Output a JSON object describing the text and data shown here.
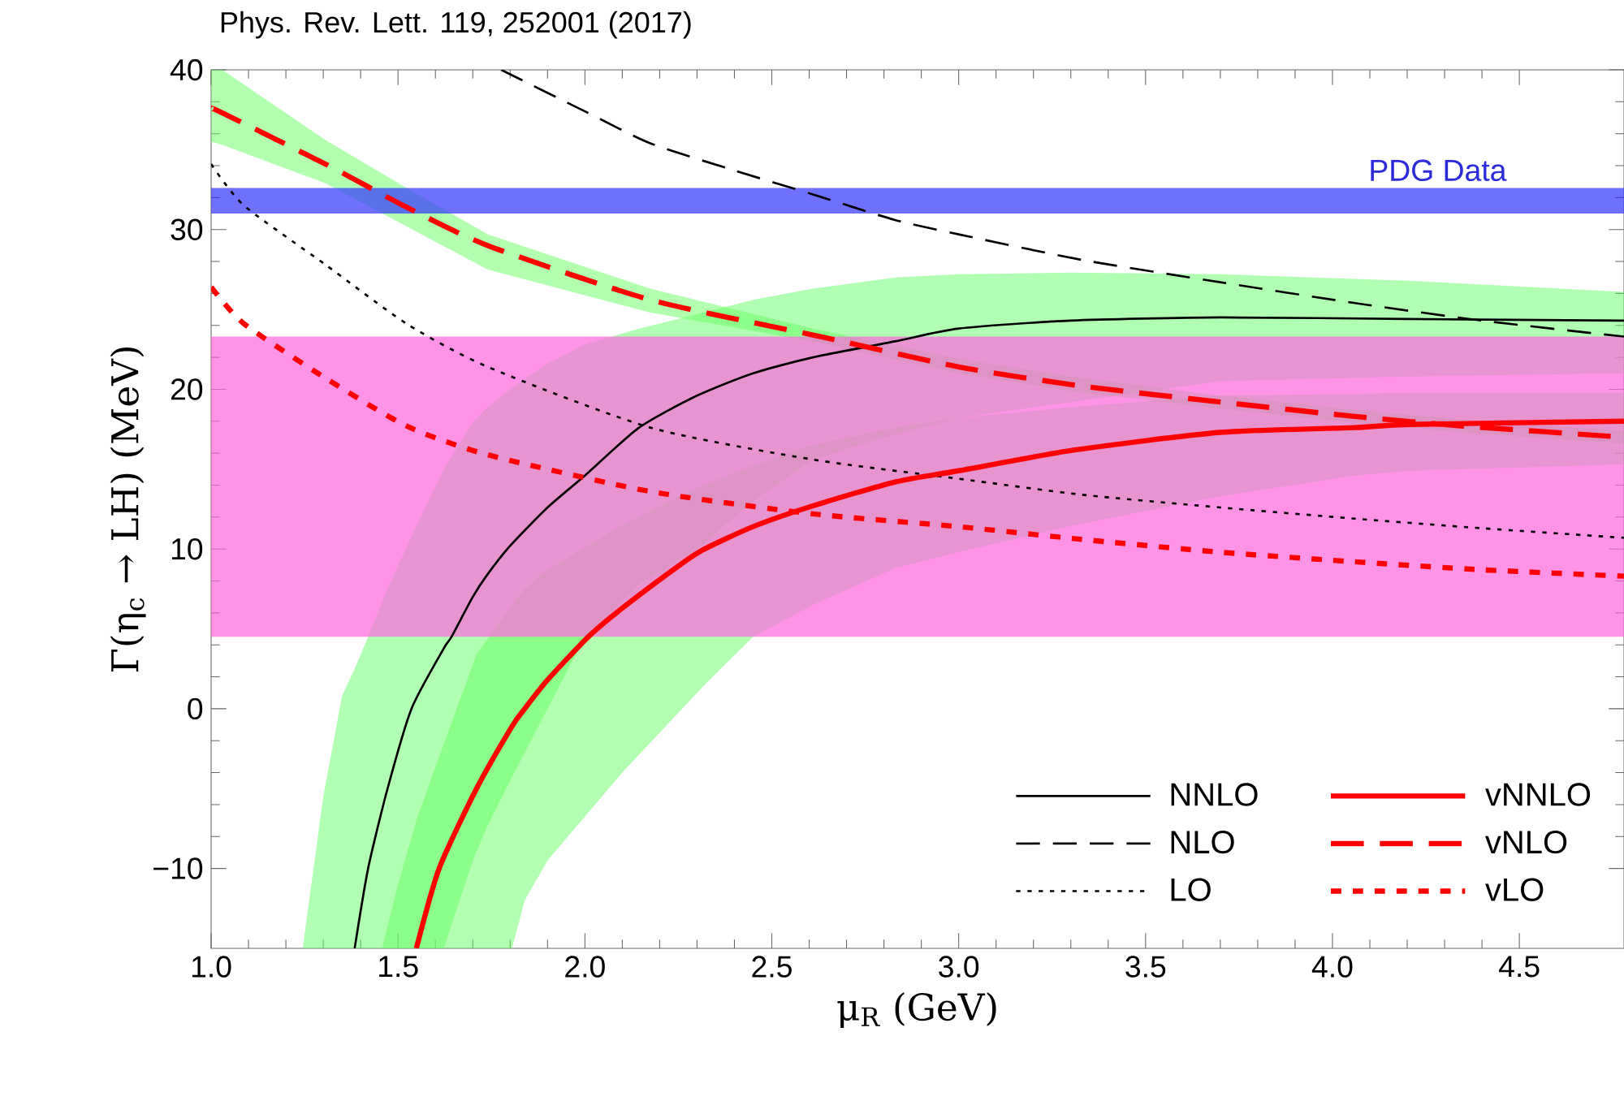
{
  "chart_data": {
    "type": "line",
    "title": "Phys. Rev. Lett. 119, 252001 (2017)",
    "xlabel": "μ$_{R}$ (GeV)",
    "ylabel": "Γ(η$_{c}$ → LH) (MeV)",
    "xlim": [
      1.0,
      4.78
    ],
    "ylim": [
      -15,
      40
    ],
    "xticks": [
      {
        "value": 1.0,
        "label": "1.0"
      },
      {
        "value": 1.5,
        "label": "1.5"
      },
      {
        "value": 2.0,
        "label": "2.0"
      },
      {
        "value": 2.5,
        "label": "2.5"
      },
      {
        "value": 3.0,
        "label": "3.0"
      },
      {
        "value": 3.5,
        "label": "3.5"
      },
      {
        "value": 4.0,
        "label": "4.0"
      },
      {
        "value": 4.5,
        "label": "4.5"
      }
    ],
    "yticks": [
      {
        "value": -10,
        "label": "−10"
      },
      0,
      10,
      20,
      30,
      40
    ],
    "legend": "bottom right",
    "bands": [
      {
        "axis": "y",
        "from": 4.5,
        "to": 23.3,
        "color": "#ff66dd"
      },
      {
        "axis": "y",
        "from": 31.0,
        "to": 32.6,
        "label": "PDG Data",
        "color": "#3333ff"
      }
    ],
    "series": [
      {
        "name": "NNLO",
        "color": "#000000",
        "line_style": "solid",
        "x": [
          1.245,
          1.3,
          1.35,
          1.384,
          1.42,
          1.472,
          1.536,
          1.623,
          1.643,
          1.7,
          1.736,
          1.8,
          1.9,
          2.0,
          2.145,
          2.3,
          2.45,
          2.61,
          2.83,
          3.0,
          3.3,
          3.7,
          4.2,
          4.78
        ],
        "values": [
          null,
          null,
          null,
          -15,
          -10,
          -5,
          0,
          3.8,
          4.5,
          7.0,
          8.3,
          10.2,
          12.6,
          14.6,
          17.6,
          19.6,
          21.0,
          22.0,
          23.0,
          23.8,
          24.3,
          24.5,
          24.4,
          24.3
        ],
        "upper": [
          -15,
          -5.5,
          0.8,
          2.5,
          4.5,
          7.5,
          10.8,
          15.0,
          15.8,
          17.9,
          18.8,
          20.0,
          21.6,
          22.8,
          23.8,
          24.7,
          25.6,
          26.3,
          27.0,
          27.2,
          27.3,
          27.2,
          26.8,
          26.1
        ],
        "lower": [
          -15,
          -15,
          -15,
          -15,
          -15,
          -15,
          -15,
          -15,
          -13.5,
          -9.5,
          -7.5,
          -4.5,
          0,
          4.5,
          7.8,
          10,
          13,
          15.6,
          17.2,
          18.2,
          19.2,
          20.5,
          20.8,
          21.0
        ]
      },
      {
        "name": "NLO",
        "color": "#000000",
        "line_style": "dashed",
        "x": [
          1.776,
          2.0,
          2.175,
          2.4,
          2.61,
          2.83,
          3.0,
          3.33,
          3.7,
          4.06,
          4.4,
          4.78
        ],
        "values": [
          40,
          37.4,
          35.4,
          33.7,
          32.2,
          30.6,
          29.7,
          28.1,
          26.7,
          25.4,
          24.3,
          23.3
        ]
      },
      {
        "name": "LO",
        "color": "#000000",
        "line_style": "dotted",
        "x": [
          1.0,
          1.088,
          1.306,
          1.523,
          1.74,
          2.175,
          2.61,
          3.0,
          3.33,
          3.7,
          4.06,
          4.4,
          4.78
        ],
        "values": [
          34.1,
          31.5,
          27.8,
          24.1,
          21.4,
          17.6,
          15.6,
          14.4,
          13.4,
          12.6,
          11.9,
          11.3,
          10.7
        ]
      },
      {
        "name": "vNNLO",
        "color": "#ff0000",
        "line_style": "solid",
        "x": [
          1.457,
          1.5,
          1.549,
          1.61,
          1.71,
          1.805,
          1.839,
          1.9,
          2.009,
          2.1,
          2.26,
          2.32,
          2.45,
          2.61,
          2.83,
          3.0,
          3.31,
          3.7,
          4.06,
          4.21,
          4.78
        ],
        "values": [
          null,
          null,
          -15,
          -10,
          -5,
          -1.1,
          0,
          1.8,
          4.5,
          6.3,
          9.1,
          10,
          11.4,
          12.7,
          14.2,
          14.9,
          16.2,
          17.3,
          17.6,
          17.8,
          18.0
        ],
        "upper": [
          -15,
          -11,
          -7,
          -3,
          3.4,
          6.5,
          7.5,
          8.7,
          10.2,
          11.5,
          13.4,
          14.0,
          15.2,
          16.5,
          17.6,
          18.2,
          18.9,
          19.6,
          19.7,
          19.8,
          19.8
        ],
        "lower": [
          -15,
          -15,
          -15,
          -15,
          -15,
          -15,
          -12,
          -9.5,
          -6.5,
          -4,
          0,
          1.5,
          4.5,
          6.5,
          8.8,
          9.8,
          11.5,
          13.3,
          14.6,
          14.9,
          15.3
        ]
      },
      {
        "name": "vNLO",
        "color": "#ff0000",
        "line_style": "dashed",
        "x": [
          1.0,
          1.03,
          1.306,
          1.523,
          1.74,
          2.175,
          2.61,
          3.0,
          3.33,
          3.7,
          4.06,
          4.35,
          4.78
        ],
        "values": [
          37.6,
          37.3,
          34.1,
          31.4,
          29.0,
          25.6,
          23.4,
          21.4,
          20.2,
          19.2,
          18.3,
          17.7,
          17.0
        ],
        "upper": [
          40,
          40,
          35.6,
          32.6,
          29.7,
          26.3,
          23.8,
          21.9,
          20.7,
          19.6,
          18.7,
          18.1,
          17.4
        ],
        "lower": [
          35.5,
          35.3,
          32.9,
          30.2,
          27.5,
          24.8,
          23.0,
          21.0,
          19.8,
          18.8,
          17.9,
          17.3,
          16.6
        ]
      },
      {
        "name": "vLO",
        "color": "#ff0000",
        "line_style": "dotted",
        "x": [
          1.0,
          1.088,
          1.306,
          1.523,
          1.74,
          2.175,
          2.61,
          3.0,
          3.33,
          3.7,
          4.06,
          4.4,
          4.78
        ],
        "values": [
          26.4,
          24.1,
          20.7,
          17.7,
          15.9,
          13.6,
          12.2,
          11.4,
          10.6,
          9.8,
          9.2,
          8.7,
          8.3
        ]
      }
    ]
  }
}
